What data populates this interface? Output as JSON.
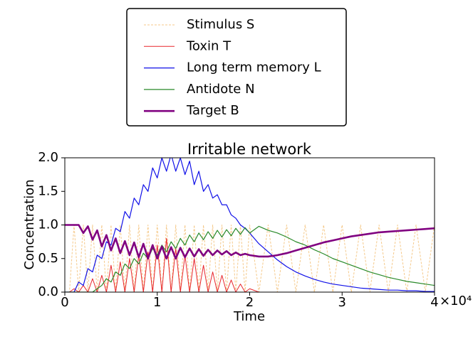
{
  "chart_data": {
    "type": "line",
    "title": "Irritable network",
    "x_label": "Time",
    "y_label": "Concentration",
    "x": [
      0,
      500,
      1000,
      1500,
      2000,
      2500,
      3000,
      3500,
      4000,
      4500,
      5000,
      5500,
      6000,
      6500,
      7000,
      7500,
      8000,
      8500,
      9000,
      9500,
      10000,
      10500,
      11000,
      11500,
      12000,
      12500,
      13000,
      13500,
      14000,
      14500,
      15000,
      15500,
      16000,
      16500,
      17000,
      17500,
      18000,
      18500,
      19000,
      19500,
      20000,
      21000,
      22000,
      23000,
      24000,
      25000,
      26000,
      27000,
      28000,
      29000,
      30000,
      31000,
      32000,
      33000,
      34000,
      35000,
      36000,
      37000,
      38000,
      39000,
      40000
    ],
    "series": [
      {
        "name": "Stimulus S",
        "color": "#f5c98a",
        "dashed": true,
        "width": 1,
        "values": [
          0,
          0,
          1.0,
          0,
          1.0,
          0,
          1.0,
          0,
          1.0,
          0,
          1.0,
          0,
          1.0,
          0,
          1.0,
          0,
          1.0,
          0,
          1.0,
          0,
          1.0,
          0,
          1.0,
          0,
          1.0,
          0,
          1.0,
          0,
          1.0,
          0,
          1.0,
          0,
          1.0,
          0,
          1.0,
          0,
          1.0,
          0,
          1.0,
          0,
          1.0,
          0,
          1.0,
          0,
          1.0,
          0,
          1.0,
          0,
          1.0,
          0,
          1.0,
          0,
          1.0,
          0,
          1.0,
          0,
          1.0,
          0,
          1.0,
          0,
          1.0
        ]
      },
      {
        "name": "Toxin T",
        "color": "#e8262b",
        "width": 1,
        "values": [
          0,
          0,
          0.05,
          0,
          0.1,
          0,
          0.2,
          0,
          0.25,
          0,
          0.4,
          0,
          0.45,
          0,
          0.5,
          0,
          0.55,
          0,
          0.6,
          0,
          0.7,
          0,
          0.8,
          0,
          0.65,
          0,
          0.55,
          0,
          0.5,
          0,
          0.4,
          0,
          0.3,
          0,
          0.25,
          0,
          0.18,
          0,
          0.12,
          0,
          0.05,
          0,
          0,
          0,
          0,
          0,
          0,
          0,
          0,
          0,
          0,
          0,
          0,
          0,
          0,
          0,
          0,
          0,
          0,
          0,
          0
        ]
      },
      {
        "name": "Long term memory L",
        "color": "#1010e8",
        "width": 1.2,
        "values": [
          0,
          0,
          0,
          0.15,
          0.1,
          0.35,
          0.3,
          0.55,
          0.5,
          0.75,
          0.7,
          0.95,
          0.9,
          1.2,
          1.1,
          1.4,
          1.3,
          1.6,
          1.5,
          1.85,
          1.7,
          2.0,
          1.8,
          2.05,
          1.8,
          2.0,
          1.75,
          1.95,
          1.6,
          1.8,
          1.5,
          1.6,
          1.4,
          1.45,
          1.3,
          1.3,
          1.15,
          1.1,
          1.0,
          0.95,
          0.88,
          0.72,
          0.6,
          0.48,
          0.38,
          0.3,
          0.24,
          0.19,
          0.15,
          0.12,
          0.1,
          0.08,
          0.06,
          0.05,
          0.04,
          0.03,
          0.03,
          0.02,
          0.02,
          0.01,
          0.01
        ]
      },
      {
        "name": "Antidote N",
        "color": "#2a8a2a",
        "width": 1.2,
        "values": [
          0,
          0,
          0,
          0,
          0,
          0,
          0,
          0.05,
          0.1,
          0.2,
          0.15,
          0.3,
          0.25,
          0.42,
          0.35,
          0.5,
          0.42,
          0.58,
          0.5,
          0.65,
          0.55,
          0.7,
          0.6,
          0.75,
          0.65,
          0.8,
          0.7,
          0.85,
          0.75,
          0.88,
          0.78,
          0.9,
          0.8,
          0.92,
          0.82,
          0.93,
          0.84,
          0.95,
          0.86,
          0.96,
          0.88,
          0.98,
          0.92,
          0.88,
          0.82,
          0.75,
          0.7,
          0.63,
          0.57,
          0.5,
          0.45,
          0.4,
          0.35,
          0.3,
          0.26,
          0.22,
          0.19,
          0.16,
          0.14,
          0.12,
          0.1
        ]
      },
      {
        "name": "Target B",
        "color": "#800080",
        "width": 2.6,
        "values": [
          1.0,
          1.0,
          1.0,
          1.0,
          0.88,
          0.98,
          0.78,
          0.92,
          0.68,
          0.85,
          0.62,
          0.8,
          0.58,
          0.76,
          0.55,
          0.74,
          0.52,
          0.72,
          0.5,
          0.7,
          0.5,
          0.68,
          0.5,
          0.67,
          0.5,
          0.66,
          0.52,
          0.65,
          0.53,
          0.64,
          0.54,
          0.63,
          0.55,
          0.62,
          0.56,
          0.61,
          0.55,
          0.59,
          0.55,
          0.57,
          0.55,
          0.53,
          0.53,
          0.55,
          0.58,
          0.62,
          0.66,
          0.7,
          0.74,
          0.77,
          0.8,
          0.83,
          0.85,
          0.87,
          0.89,
          0.9,
          0.91,
          0.92,
          0.93,
          0.94,
          0.95
        ]
      }
    ],
    "xlim": [
      0,
      40000
    ],
    "xticks": [
      {
        "value": 0,
        "label": "0"
      },
      {
        "value": 10000,
        "label": "1"
      },
      {
        "value": 20000,
        "label": "2"
      },
      {
        "value": 30000,
        "label": "3"
      },
      {
        "value": 40000,
        "label": "4"
      }
    ],
    "x_offset_text": "×10⁴",
    "ylim": [
      0,
      2
    ],
    "yticks": [
      {
        "value": 0,
        "label": "0.0"
      },
      0.5,
      {
        "value": 1,
        "label": "1.0"
      },
      1.5,
      {
        "value": 2,
        "label": "2.0"
      }
    ],
    "grid": false,
    "legend": "top"
  }
}
